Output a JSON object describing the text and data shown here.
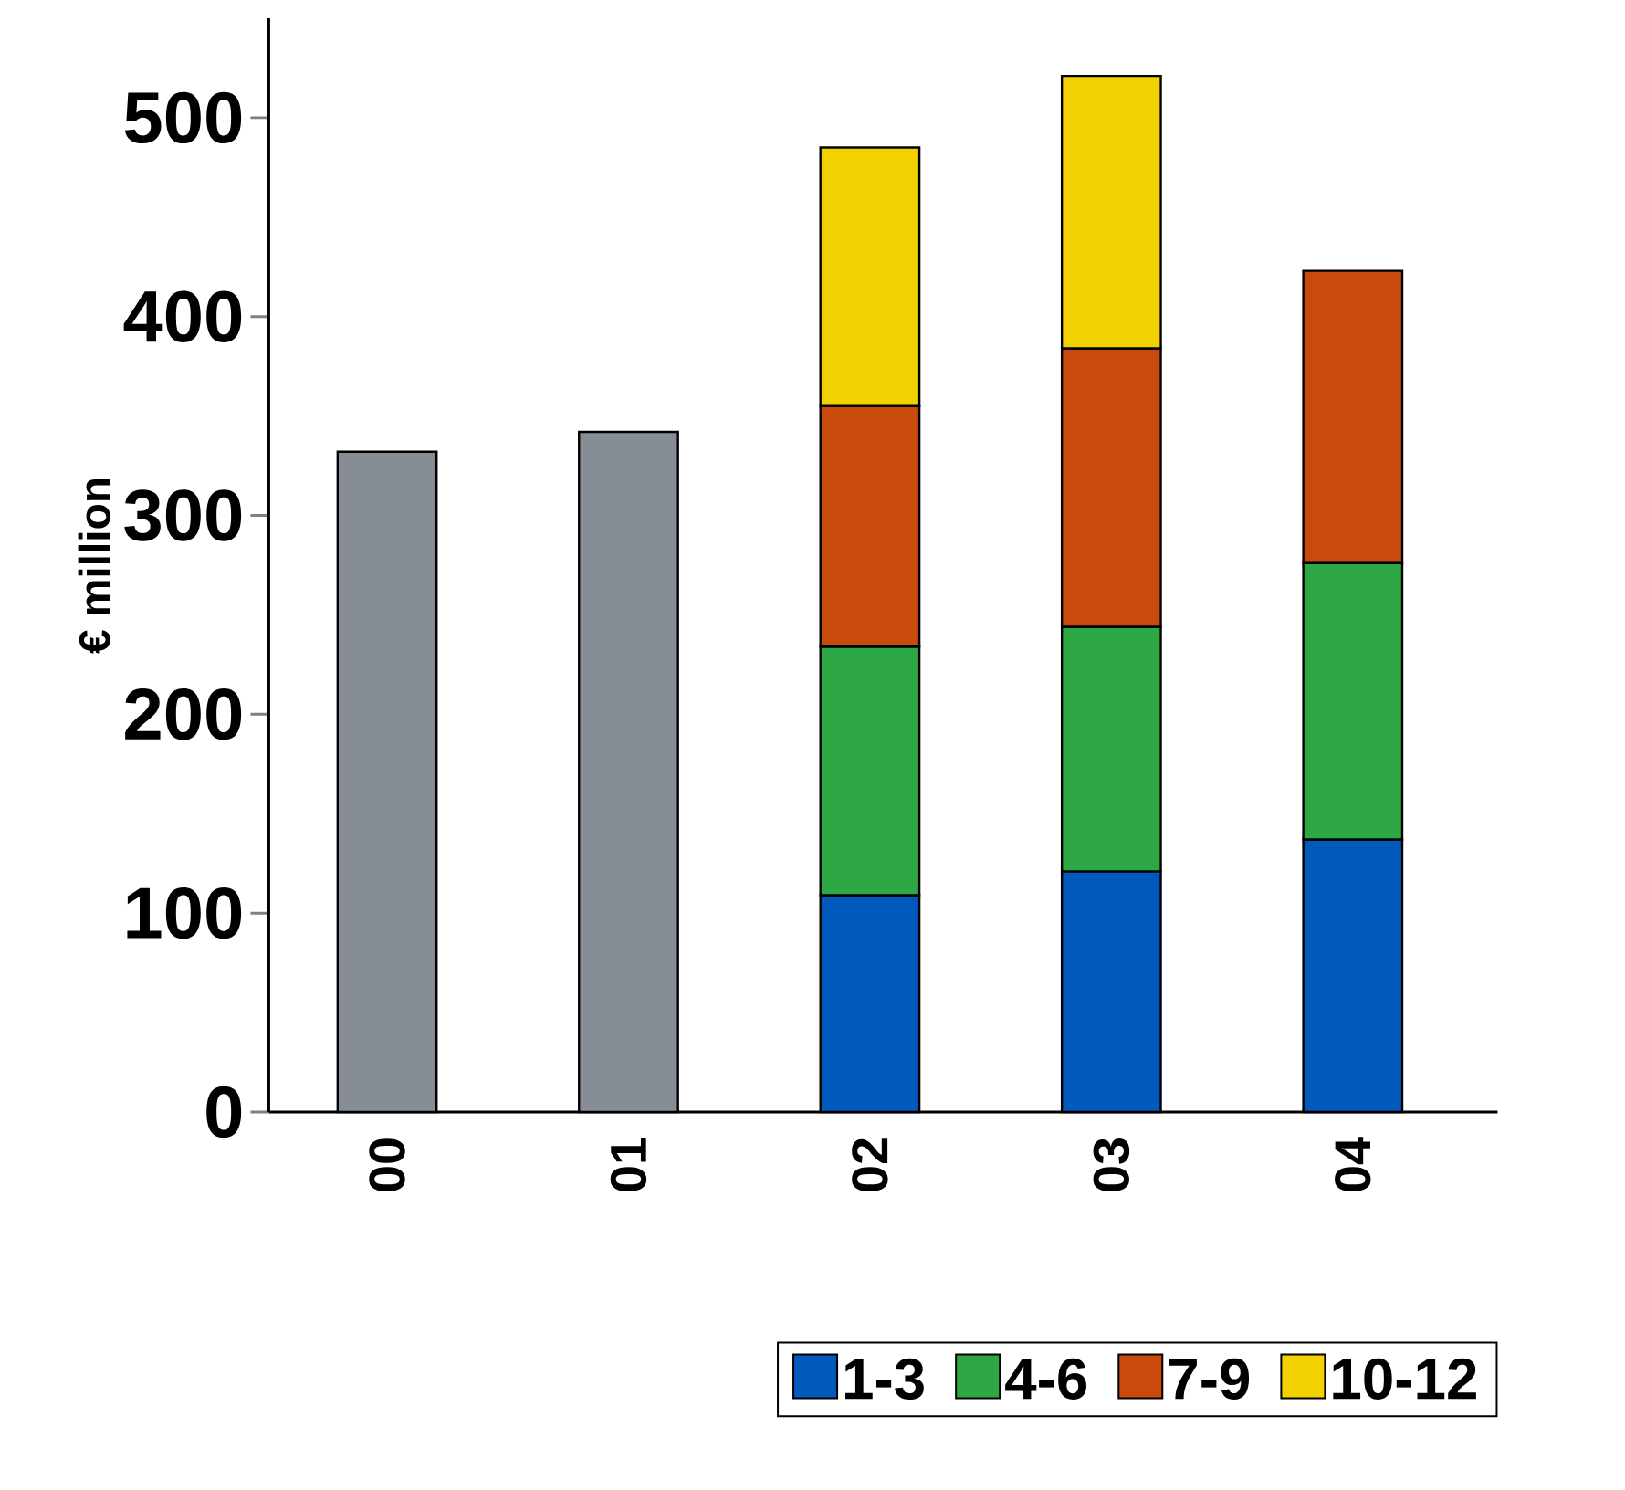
{
  "chart_data": {
    "type": "bar",
    "stacked": true,
    "ylabel": "€ million",
    "categories": [
      "00",
      "01",
      "02",
      "03",
      "04"
    ],
    "series": [
      {
        "color": "#878d94",
        "values": [
          332,
          342,
          null,
          null,
          null
        ]
      },
      {
        "name": "1-3",
        "color": "#0059bd",
        "values": [
          null,
          null,
          109,
          121,
          137
        ]
      },
      {
        "name": "4-6",
        "color": "#2ea844",
        "values": [
          null,
          null,
          125,
          123,
          139
        ]
      },
      {
        "name": "7-9",
        "color": "#c84b0c",
        "values": [
          null,
          null,
          121,
          140,
          147
        ]
      },
      {
        "name": "10-12",
        "color": "#f2d100",
        "values": [
          null,
          null,
          130,
          137,
          null
        ]
      }
    ],
    "ylim": [
      0,
      550
    ],
    "yticks": [
      0,
      100,
      200,
      300,
      400,
      500
    ],
    "legend": "bottom"
  }
}
